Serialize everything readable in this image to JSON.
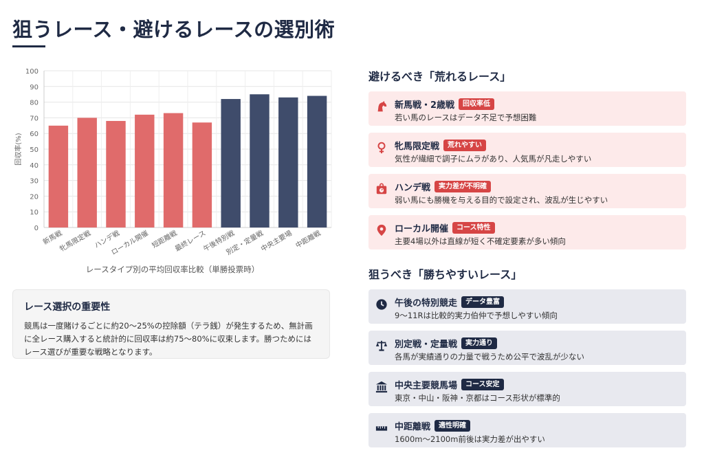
{
  "title": "狙うレース・避けるレースの選別術",
  "chart_data": {
    "type": "bar",
    "categories": [
      "新馬戦",
      "牝馬限定戦",
      "ハンデ戦",
      "ローカル開催",
      "短距離戦",
      "最終レース",
      "午後特別戦",
      "別定・定量戦",
      "中央主要場",
      "中距離戦"
    ],
    "values": [
      65,
      70,
      68,
      72,
      73,
      67,
      82,
      85,
      83,
      84
    ],
    "bar_colors": [
      "#e06b6b",
      "#e06b6b",
      "#e06b6b",
      "#e06b6b",
      "#e06b6b",
      "#e06b6b",
      "#3f4c6b",
      "#3f4c6b",
      "#3f4c6b",
      "#3f4c6b"
    ],
    "ylabel": "回収率(%)",
    "xlabel": "レースタイプ別の平均回収率比較（単勝投票時）",
    "ylim": [
      0,
      100
    ],
    "yticks": [
      0,
      10,
      20,
      30,
      40,
      50,
      60,
      70,
      80,
      90,
      100
    ],
    "grid": true
  },
  "note": {
    "title": "レース選択の重要性",
    "text": "競馬は一度賭けるごとに約20〜25%の控除額（テラ銭）が発生するため、無計画に全レース購入すると統計的に回収率は約75〜80%に収束します。勝つためにはレース選びが重要な戦略となります。"
  },
  "avoid": {
    "heading": "避けるべき「荒れるレース」",
    "items": [
      {
        "icon": "horse-icon",
        "title": "新馬戦・2歳戦",
        "badge": "回収率低",
        "desc": "若い馬のレースはデータ不足で予想困難"
      },
      {
        "icon": "venus-icon",
        "title": "牝馬限定戦",
        "badge": "荒れやすい",
        "desc": "気性が繊細で調子にムラがあり、人気馬が凡走しやすい"
      },
      {
        "icon": "weight-icon",
        "title": "ハンデ戦",
        "badge": "実力差が不明確",
        "desc": "弱い馬にも勝機を与える目的で設定され、波乱が生じやすい"
      },
      {
        "icon": "map-pin-icon",
        "title": "ローカル開催",
        "badge": "コース特性",
        "desc": "主要4場以外は直線が短く不確定要素が多い傾向"
      }
    ]
  },
  "target": {
    "heading": "狙うべき「勝ちやすいレース」",
    "items": [
      {
        "icon": "clock-icon",
        "title": "午後の特別競走",
        "badge": "データ豊富",
        "desc": "9〜11Rは比較的実力伯仲で予想しやすい傾向"
      },
      {
        "icon": "scale-icon",
        "title": "別定戦・定量戦",
        "badge": "実力通り",
        "desc": "各馬が実績通りの力量で戦うため公平で波乱が少ない"
      },
      {
        "icon": "landmark-icon",
        "title": "中央主要競馬場",
        "badge": "コース安定",
        "desc": "東京・中山・阪神・京都はコース形状が標準的"
      },
      {
        "icon": "ruler-icon",
        "title": "中距離戦",
        "badge": "適性明確",
        "desc": "1600m〜2100m前後は実力差が出やすい"
      }
    ]
  }
}
